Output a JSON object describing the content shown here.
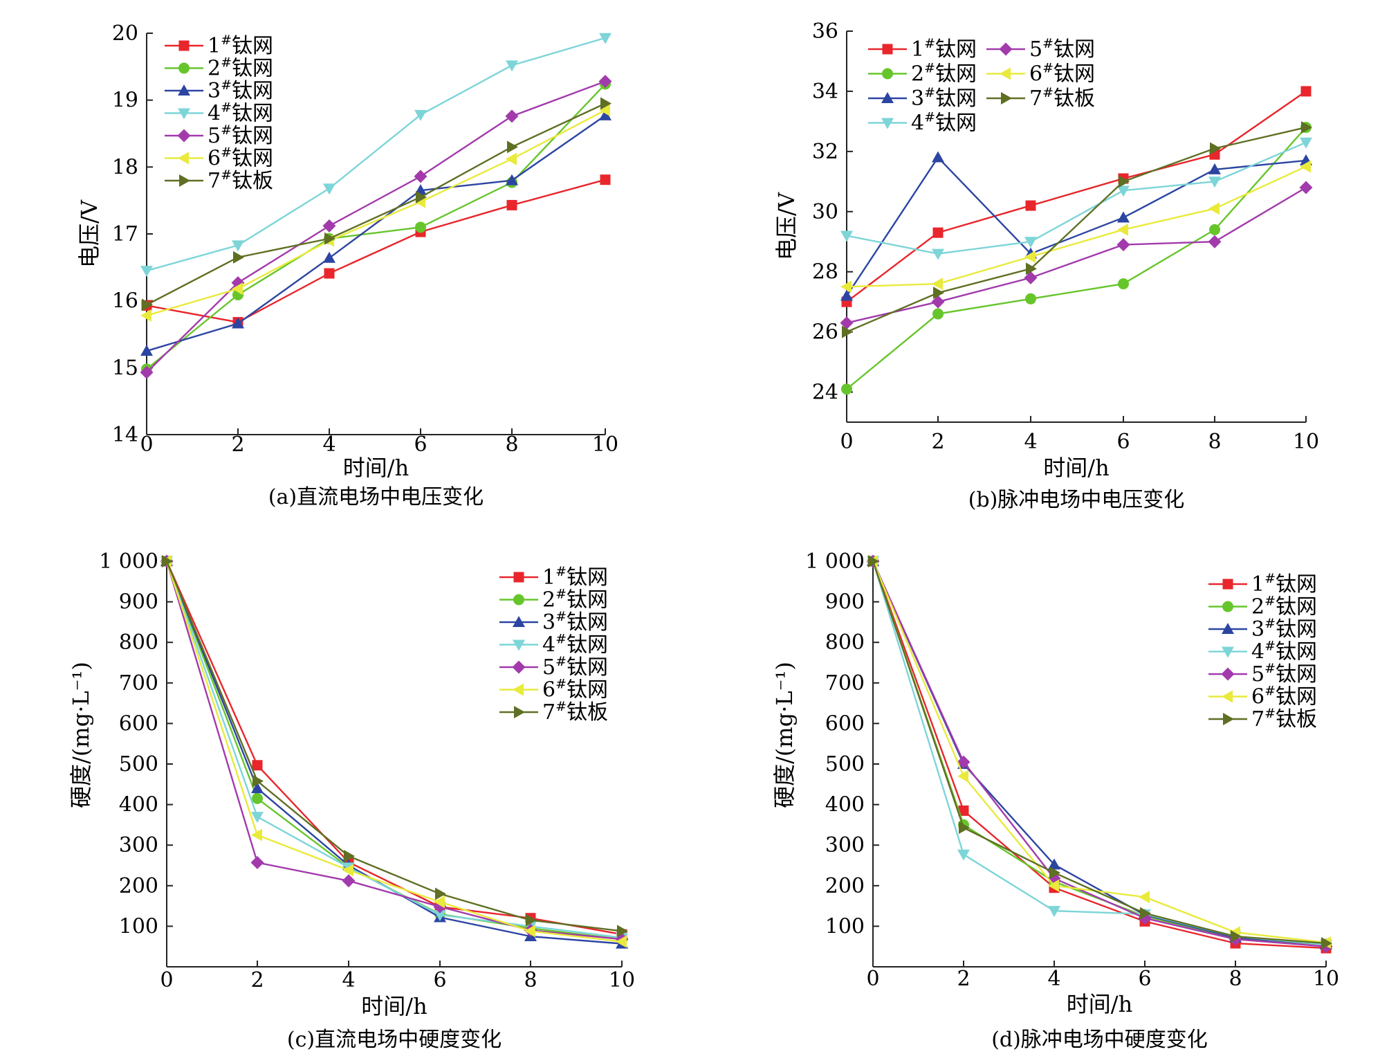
{
  "colors": {
    "1": "#e8262c",
    "2": "#67c52c",
    "3": "#2c45a2",
    "4": "#7dd5d8",
    "5": "#a23aac",
    "6": "#e9ea3c",
    "7": "#5f6f23"
  },
  "chart_data": [
    {
      "id": "a",
      "type": "line",
      "caption": "(a)直流电场中电压变化",
      "xlabel": "时间/h",
      "ylabel": "电压/V",
      "x": [
        0,
        2,
        4,
        6,
        8,
        10
      ],
      "xticks": [
        "0",
        "2",
        "4",
        "6",
        "8",
        "10"
      ],
      "ylim": [
        14,
        20
      ],
      "yticks": [
        "14",
        "15",
        "16",
        "17",
        "18",
        "19",
        "20"
      ],
      "legend": "top-left",
      "series": [
        {
          "num": "1",
          "suffix": "钛网",
          "marker": "square",
          "values": [
            15.93,
            15.68,
            16.41,
            17.03,
            17.43,
            17.81
          ]
        },
        {
          "num": "2",
          "suffix": "钛网",
          "marker": "circle",
          "values": [
            14.98,
            16.09,
            16.93,
            17.1,
            17.77,
            19.24
          ]
        },
        {
          "num": "3",
          "suffix": "钛网",
          "marker": "triangle-up",
          "values": [
            15.25,
            15.66,
            16.64,
            17.65,
            17.8,
            18.77
          ]
        },
        {
          "num": "4",
          "suffix": "钛网",
          "marker": "triangle-down",
          "values": [
            16.45,
            16.83,
            17.68,
            18.78,
            19.52,
            19.93
          ]
        },
        {
          "num": "5",
          "suffix": "钛网",
          "marker": "diamond",
          "values": [
            14.93,
            16.27,
            17.12,
            17.86,
            18.76,
            19.28
          ]
        },
        {
          "num": "6",
          "suffix": "钛网",
          "marker": "triangle-left",
          "values": [
            15.78,
            16.18,
            16.9,
            17.48,
            18.12,
            18.85
          ]
        },
        {
          "num": "7",
          "suffix": "钛板",
          "marker": "triangle-right",
          "values": [
            15.94,
            16.65,
            16.93,
            17.55,
            18.3,
            18.95
          ]
        }
      ]
    },
    {
      "id": "b",
      "type": "line",
      "caption": "(b)脉冲电场中电压变化",
      "xlabel": "时间/h",
      "ylabel": "电压/V",
      "x": [
        0,
        2,
        4,
        6,
        8,
        10
      ],
      "xticks": [
        "0",
        "2",
        "4",
        "6",
        "8",
        "10"
      ],
      "ylim": [
        23,
        36
      ],
      "yticks": [
        "24",
        "26",
        "28",
        "30",
        "32",
        "34",
        "36"
      ],
      "ytick_values": [
        24,
        26,
        28,
        30,
        32,
        34,
        36
      ],
      "legend": "top-left, two columns",
      "series": [
        {
          "num": "1",
          "suffix": "钛网",
          "marker": "square",
          "values": [
            27.0,
            29.3,
            30.2,
            31.1,
            31.9,
            34.0
          ]
        },
        {
          "num": "2",
          "suffix": "钛网",
          "marker": "circle",
          "values": [
            24.1,
            26.6,
            27.1,
            27.6,
            29.4,
            32.8
          ]
        },
        {
          "num": "3",
          "suffix": "钛网",
          "marker": "triangle-up",
          "values": [
            27.2,
            31.8,
            28.6,
            29.8,
            31.4,
            31.7
          ]
        },
        {
          "num": "4",
          "suffix": "钛网",
          "marker": "triangle-down",
          "values": [
            29.2,
            28.6,
            29.0,
            30.7,
            31.0,
            32.3
          ]
        },
        {
          "num": "5",
          "suffix": "钛网",
          "marker": "diamond",
          "values": [
            26.3,
            27.0,
            27.8,
            28.9,
            29.0,
            30.8
          ]
        },
        {
          "num": "6",
          "suffix": "钛网",
          "marker": "triangle-left",
          "values": [
            27.5,
            27.6,
            28.5,
            29.4,
            30.1,
            31.5
          ]
        },
        {
          "num": "7",
          "suffix": "钛板",
          "marker": "triangle-right",
          "values": [
            26.0,
            27.3,
            28.1,
            31.0,
            32.1,
            32.8
          ]
        }
      ]
    },
    {
      "id": "c",
      "type": "line",
      "caption": "(c)直流电场中硬度变化",
      "xlabel": "时间/h",
      "ylabel": "硬度/(mg·L⁻¹)",
      "x": [
        0,
        2,
        4,
        6,
        8,
        10
      ],
      "xticks": [
        "0",
        "2",
        "4",
        "6",
        "8",
        "10"
      ],
      "ylim": [
        0,
        1000
      ],
      "yticks": [
        "100",
        "200",
        "300",
        "400",
        "500",
        "600",
        "700",
        "800",
        "900",
        "1 000"
      ],
      "ytick_values": [
        100,
        200,
        300,
        400,
        500,
        600,
        700,
        800,
        900,
        1000
      ],
      "legend": "top-right",
      "series": [
        {
          "num": "1",
          "suffix": "钛网",
          "marker": "square",
          "values": [
            1000,
            497,
            258,
            148,
            120,
            80
          ]
        },
        {
          "num": "2",
          "suffix": "钛网",
          "marker": "circle",
          "values": [
            1000,
            415,
            245,
            130,
            95,
            68
          ]
        },
        {
          "num": "3",
          "suffix": "钛网",
          "marker": "triangle-up",
          "values": [
            1000,
            440,
            250,
            122,
            75,
            57
          ]
        },
        {
          "num": "4",
          "suffix": "钛网",
          "marker": "triangle-down",
          "values": [
            1000,
            370,
            245,
            128,
            100,
            72
          ]
        },
        {
          "num": "5",
          "suffix": "钛网",
          "marker": "diamond",
          "values": [
            1000,
            257,
            212,
            148,
            90,
            68
          ]
        },
        {
          "num": "6",
          "suffix": "钛网",
          "marker": "triangle-left",
          "values": [
            1000,
            325,
            238,
            160,
            88,
            62
          ]
        },
        {
          "num": "7",
          "suffix": "钛板",
          "marker": "triangle-right",
          "values": [
            1000,
            458,
            273,
            180,
            115,
            88
          ]
        }
      ]
    },
    {
      "id": "d",
      "type": "line",
      "caption": "(d)脉冲电场中硬度变化",
      "xlabel": "时间/h",
      "ylabel": "硬度/(mg·L⁻¹)",
      "x": [
        0,
        2,
        4,
        6,
        8,
        10
      ],
      "xticks": [
        "0",
        "2",
        "4",
        "6",
        "8",
        "10"
      ],
      "ylim": [
        0,
        1000
      ],
      "yticks": [
        "100",
        "200",
        "300",
        "400",
        "500",
        "600",
        "700",
        "800",
        "900",
        "1 000"
      ],
      "ytick_values": [
        100,
        200,
        300,
        400,
        500,
        600,
        700,
        800,
        900,
        1000
      ],
      "legend": "top-right",
      "series": [
        {
          "num": "1",
          "suffix": "钛网",
          "marker": "square",
          "values": [
            1000,
            385,
            195,
            112,
            58,
            46
          ]
        },
        {
          "num": "2",
          "suffix": "钛网",
          "marker": "circle",
          "values": [
            1000,
            350,
            210,
            125,
            70,
            55
          ]
        },
        {
          "num": "3",
          "suffix": "钛网",
          "marker": "triangle-up",
          "values": [
            1000,
            500,
            252,
            128,
            72,
            55
          ]
        },
        {
          "num": "4",
          "suffix": "钛网",
          "marker": "triangle-down",
          "values": [
            1000,
            277,
            138,
            130,
            75,
            55
          ]
        },
        {
          "num": "5",
          "suffix": "钛网",
          "marker": "diamond",
          "values": [
            1000,
            505,
            218,
            120,
            68,
            50
          ]
        },
        {
          "num": "6",
          "suffix": "钛网",
          "marker": "triangle-left",
          "values": [
            1000,
            470,
            200,
            172,
            85,
            60
          ]
        },
        {
          "num": "7",
          "suffix": "钛板",
          "marker": "triangle-right",
          "values": [
            1000,
            343,
            232,
            132,
            75,
            58
          ]
        }
      ]
    }
  ]
}
